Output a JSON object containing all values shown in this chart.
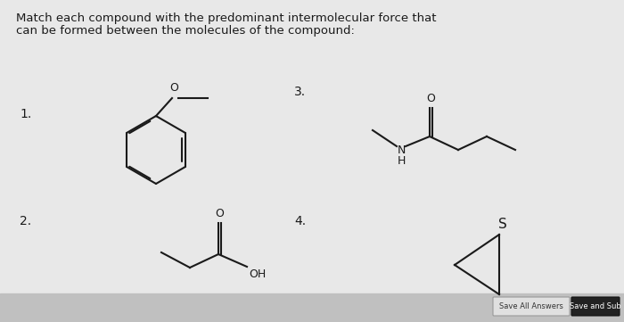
{
  "title_line1": "Match each compound with the predominant intermolecular force that",
  "title_line2": "can be formed between the molecules of the compound:",
  "bg_color": "#e8e8e8",
  "text_color": "#1a1a1a",
  "button1_text": "Save All Answers",
  "button2_text": "Save and Sub",
  "button1_color": "#e0e0e0",
  "button2_color": "#222222",
  "footer_color": "#c0c0c0",
  "lw": 1.5
}
